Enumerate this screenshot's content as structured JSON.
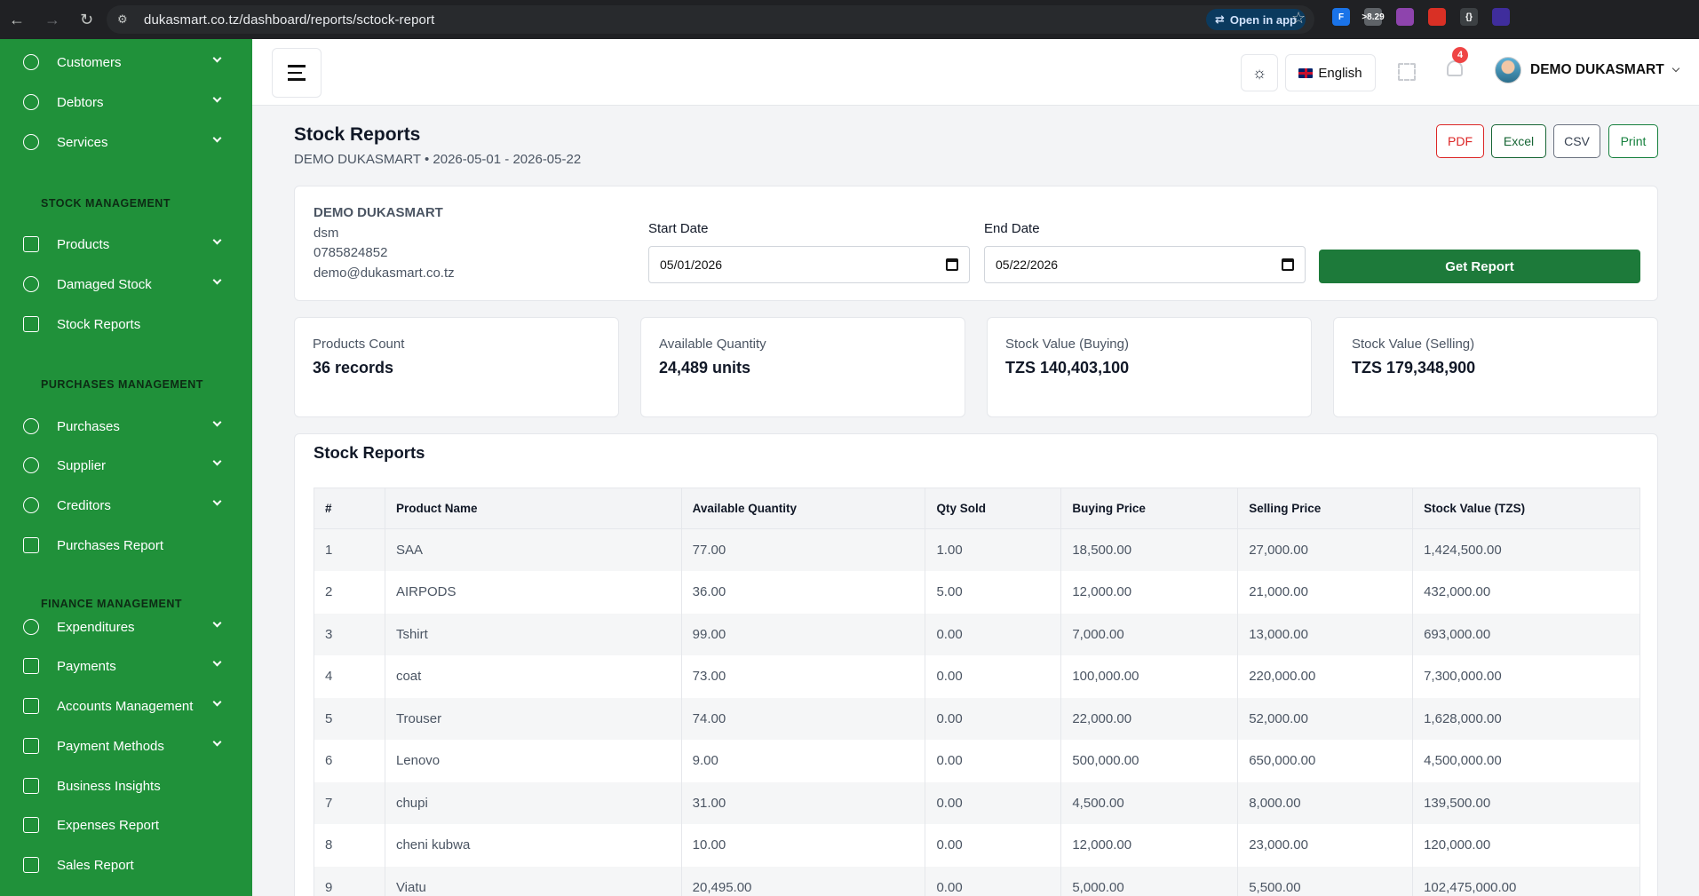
{
  "browser": {
    "url": "dukasmart.co.tz/dashboard/reports/sctock-report",
    "open_in_app": "Open in app",
    "extensions": [
      {
        "icon": "ext-f-icon",
        "text": "F",
        "color": "#1a73e8"
      },
      {
        "icon": "ext-counter-icon",
        "text": ">8.29",
        "color": "#5f6368"
      },
      {
        "icon": "ext-brain-icon",
        "text": "",
        "color": "#8e44ad"
      },
      {
        "icon": "ext-red-icon",
        "text": "",
        "color": "#d93025"
      },
      {
        "icon": "ext-json-icon",
        "text": "{}",
        "color": "#3c4043"
      },
      {
        "icon": "ext-purple-icon",
        "text": "",
        "color": "#3f2d9c"
      },
      {
        "icon": "extensions-puzzle-icon",
        "text": "",
        "color": "#202124"
      }
    ]
  },
  "sidebar": {
    "items": [
      {
        "label": "Customers",
        "icon": "user-group-icon",
        "chevron": true
      },
      {
        "label": "Debtors",
        "icon": "user-icon",
        "chevron": true
      },
      {
        "label": "Services",
        "icon": "heart-hand-icon",
        "chevron": true
      },
      {
        "label": "Products",
        "icon": "cart-icon",
        "chevron": true
      },
      {
        "label": "Damaged Stock",
        "icon": "alert-circle-icon",
        "chevron": true
      },
      {
        "label": "Stock Reports",
        "icon": "download-icon",
        "chevron": false
      },
      {
        "label": "Purchases",
        "icon": "coin-icon",
        "chevron": true
      },
      {
        "label": "Supplier",
        "icon": "user-icon",
        "chevron": true
      },
      {
        "label": "Creditors",
        "icon": "user-group-icon",
        "chevron": true
      },
      {
        "label": "Purchases Report",
        "icon": "calendar-icon",
        "chevron": false
      },
      {
        "label": "Expenditures",
        "icon": "check-circle-icon",
        "chevron": true
      },
      {
        "label": "Payments",
        "icon": "wallet-icon",
        "chevron": true
      },
      {
        "label": "Accounts Management",
        "icon": "ledger-icon",
        "chevron": true
      },
      {
        "label": "Payment Methods",
        "icon": "bank-icon",
        "chevron": true
      },
      {
        "label": "Business Insights",
        "icon": "chart-icon",
        "chevron": false
      },
      {
        "label": "Expenses Report",
        "icon": "download-icon",
        "chevron": false
      },
      {
        "label": "Sales Report",
        "icon": "download-icon",
        "chevron": false
      }
    ],
    "sections": {
      "stock": "STOCK MANAGEMENT",
      "purchases": "PURCHASES MANAGEMENT",
      "finance": "FINANCE MANAGEMENT"
    }
  },
  "header": {
    "language": "English",
    "notification_count": "4",
    "user_name": "DEMO DUKASMART"
  },
  "page": {
    "title": "Stock Reports",
    "subtitle": "DEMO DUKASMART • 2026-05-01 - 2026-05-22",
    "export": {
      "pdf": "PDF",
      "excel": "Excel",
      "csv": "CSV",
      "print": "Print"
    }
  },
  "filter": {
    "business_name": "DEMO DUKASMART",
    "business_code": "dsm",
    "phone": "0785824852",
    "email": "demo@dukasmart.co.tz",
    "start_label": "Start Date",
    "start_value": "05/01/2026",
    "end_label": "End Date",
    "end_value": "05/22/2026",
    "submit": "Get Report"
  },
  "stats": [
    {
      "label": "Products Count",
      "value": "36 records"
    },
    {
      "label": "Available Quantity",
      "value": "24,489 units"
    },
    {
      "label": "Stock Value (Buying)",
      "value": "TZS 140,403,100"
    },
    {
      "label": "Stock Value (Selling)",
      "value": "TZS 179,348,900"
    }
  ],
  "table": {
    "title": "Stock Reports",
    "columns": [
      "#",
      "Product Name",
      "Available Quantity",
      "Qty Sold",
      "Buying Price",
      "Selling Price",
      "Stock Value (TZS)"
    ],
    "rows": [
      [
        "1",
        "SAA",
        "77.00",
        "1.00",
        "18,500.00",
        "27,000.00",
        "1,424,500.00"
      ],
      [
        "2",
        "AIRPODS",
        "36.00",
        "5.00",
        "12,000.00",
        "21,000.00",
        "432,000.00"
      ],
      [
        "3",
        "Tshirt",
        "99.00",
        "0.00",
        "7,000.00",
        "13,000.00",
        "693,000.00"
      ],
      [
        "4",
        "coat",
        "73.00",
        "0.00",
        "100,000.00",
        "220,000.00",
        "7,300,000.00"
      ],
      [
        "5",
        "Trouser",
        "74.00",
        "0.00",
        "22,000.00",
        "52,000.00",
        "1,628,000.00"
      ],
      [
        "6",
        "Lenovo",
        "9.00",
        "0.00",
        "500,000.00",
        "650,000.00",
        "4,500,000.00"
      ],
      [
        "7",
        "chupi",
        "31.00",
        "0.00",
        "4,500.00",
        "8,000.00",
        "139,500.00"
      ],
      [
        "8",
        "cheni kubwa",
        "10.00",
        "0.00",
        "12,000.00",
        "23,000.00",
        "120,000.00"
      ],
      [
        "9",
        "Viatu",
        "20,495.00",
        "0.00",
        "5,000.00",
        "5,500.00",
        "102,475,000.00"
      ]
    ]
  }
}
